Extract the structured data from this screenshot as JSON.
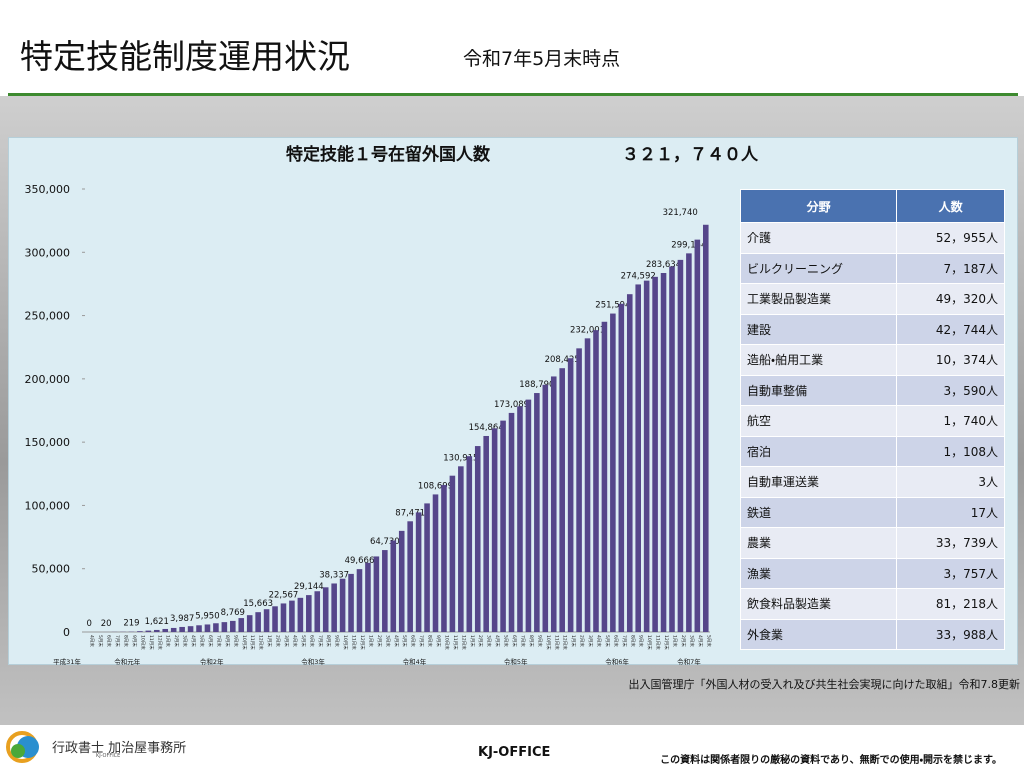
{
  "header": {
    "title": "特定技能制度運用状況",
    "subtitle": "令和7年5月末時点"
  },
  "chart_data": {
    "type": "bar",
    "title": "特定技能１号在留外国人数",
    "total": "３２１，７４０人",
    "color": "#55468a",
    "categories": [
      "4月末",
      "5月末",
      "6月末",
      "7月末",
      "8月末",
      "9月末",
      "10月末",
      "11月末",
      "12月末",
      "1月末",
      "2月末",
      "3月末",
      "4月末",
      "5月末",
      "6月末",
      "7月末",
      "8月末",
      "9月末",
      "10月末",
      "11月末",
      "12月末",
      "1月末",
      "2月末",
      "3月末",
      "4月末",
      "5月末",
      "6月末",
      "7月末",
      "8月末",
      "9月末",
      "10月末",
      "11月末",
      "12月末",
      "1月末",
      "2月末",
      "3月末",
      "4月末",
      "5月末",
      "6月末",
      "7月末",
      "8月末",
      "9月末",
      "10月末",
      "11月末",
      "12月末",
      "1月末",
      "2月末",
      "3月末",
      "4月末",
      "5月末",
      "6月末",
      "7月末",
      "8月末",
      "9月末",
      "10月末",
      "11月末",
      "12月末",
      "1月末",
      "2月末",
      "3月末",
      "4月末",
      "5月末",
      "6月末",
      "7月末",
      "8月末",
      "9月末",
      "10月末",
      "11月末",
      "12月末",
      "1月末",
      "2月末",
      "3月末",
      "4月末",
      "5月末"
    ],
    "values": [
      0,
      10,
      20,
      90,
      150,
      219,
      650,
      1100,
      1621,
      2400,
      3200,
      3987,
      4600,
      5300,
      5950,
      6900,
      7800,
      8769,
      11000,
      13300,
      15663,
      18000,
      20300,
      22567,
      24800,
      27000,
      29144,
      32200,
      35300,
      38337,
      42100,
      45900,
      49666,
      54700,
      59700,
      64730,
      72300,
      79900,
      87471,
      94500,
      101600,
      108699,
      116100,
      123500,
      130915,
      138900,
      146900,
      154864,
      160900,
      167000,
      173089,
      178300,
      183600,
      188790,
      195300,
      201900,
      208425,
      216300,
      224100,
      232001,
      238500,
      245100,
      251594,
      259300,
      266900,
      274592,
      277600,
      280600,
      283634,
      288800,
      294000,
      299154,
      310000,
      321740
    ],
    "value_labels": [
      "0",
      null,
      "20",
      null,
      null,
      "219",
      null,
      null,
      "1,621",
      null,
      null,
      "3,987",
      null,
      null,
      "5,950",
      null,
      null,
      "8,769",
      null,
      null,
      "15,663",
      null,
      null,
      "22,567",
      null,
      null,
      "29,144",
      null,
      null,
      "38,337",
      null,
      null,
      "49,666",
      null,
      null,
      "64,730",
      null,
      null,
      "87,471",
      null,
      null,
      "108,699",
      null,
      null,
      "130,915",
      null,
      null,
      "154,864",
      null,
      null,
      "173,089",
      null,
      null,
      "188,790",
      null,
      null,
      "208,425",
      null,
      null,
      "232,001",
      null,
      null,
      "251,594",
      null,
      null,
      "274,592",
      null,
      null,
      "283,634",
      null,
      null,
      "299,154",
      null,
      "321,740"
    ],
    "groups": [
      "平成31年",
      "令和元年",
      "令和2年",
      "令和3年",
      "令和4年",
      "令和5年",
      "令和6年",
      "令和7年"
    ],
    "ylim": [
      0,
      350000
    ],
    "yticks": [
      0,
      {
        "value": 50000,
        "label": "50,000"
      },
      {
        "value": 100000,
        "label": "100,000"
      },
      {
        "value": 150000,
        "label": "150,000"
      },
      {
        "value": 200000,
        "label": "200,000"
      },
      {
        "value": 250000,
        "label": "250,000"
      },
      {
        "value": 300000,
        "label": "300,000"
      },
      {
        "value": 350000,
        "label": "350,000"
      }
    ],
    "grid": false
  },
  "table": {
    "header": [
      "分野",
      "人数"
    ],
    "rows": [
      [
        "介護",
        "52，955人"
      ],
      [
        "ビルクリーニング",
        "7，187人"
      ],
      [
        "工業製品製造業",
        "49，320人"
      ],
      [
        "建設",
        "42，744人"
      ],
      [
        "造船・舶用工業",
        "10，374人"
      ],
      [
        "自動車整備",
        "3，590人"
      ],
      [
        "航空",
        "1，740人"
      ],
      [
        "宿泊",
        "1，108人"
      ],
      [
        "自動車運送業",
        "3人"
      ],
      [
        "鉄道",
        "17人"
      ],
      [
        "農業",
        "33，739人"
      ],
      [
        "漁業",
        "3，757人"
      ],
      [
        "飲食料品製造業",
        "81，218人"
      ],
      [
        "外食業",
        "33，988人"
      ]
    ]
  },
  "source": "出入国管理庁「外国人材の受入れ及び共生社会実現に向けた取組」令和7.8更新",
  "footer": {
    "logo": "行政書士 加治屋事務所",
    "logo_sub": "KJ-OFFICE",
    "center": "KJ-OFFICE",
    "notice": "この資料は関係者限りの厳秘の資料であり、無断での使用・開示を禁じます。"
  }
}
